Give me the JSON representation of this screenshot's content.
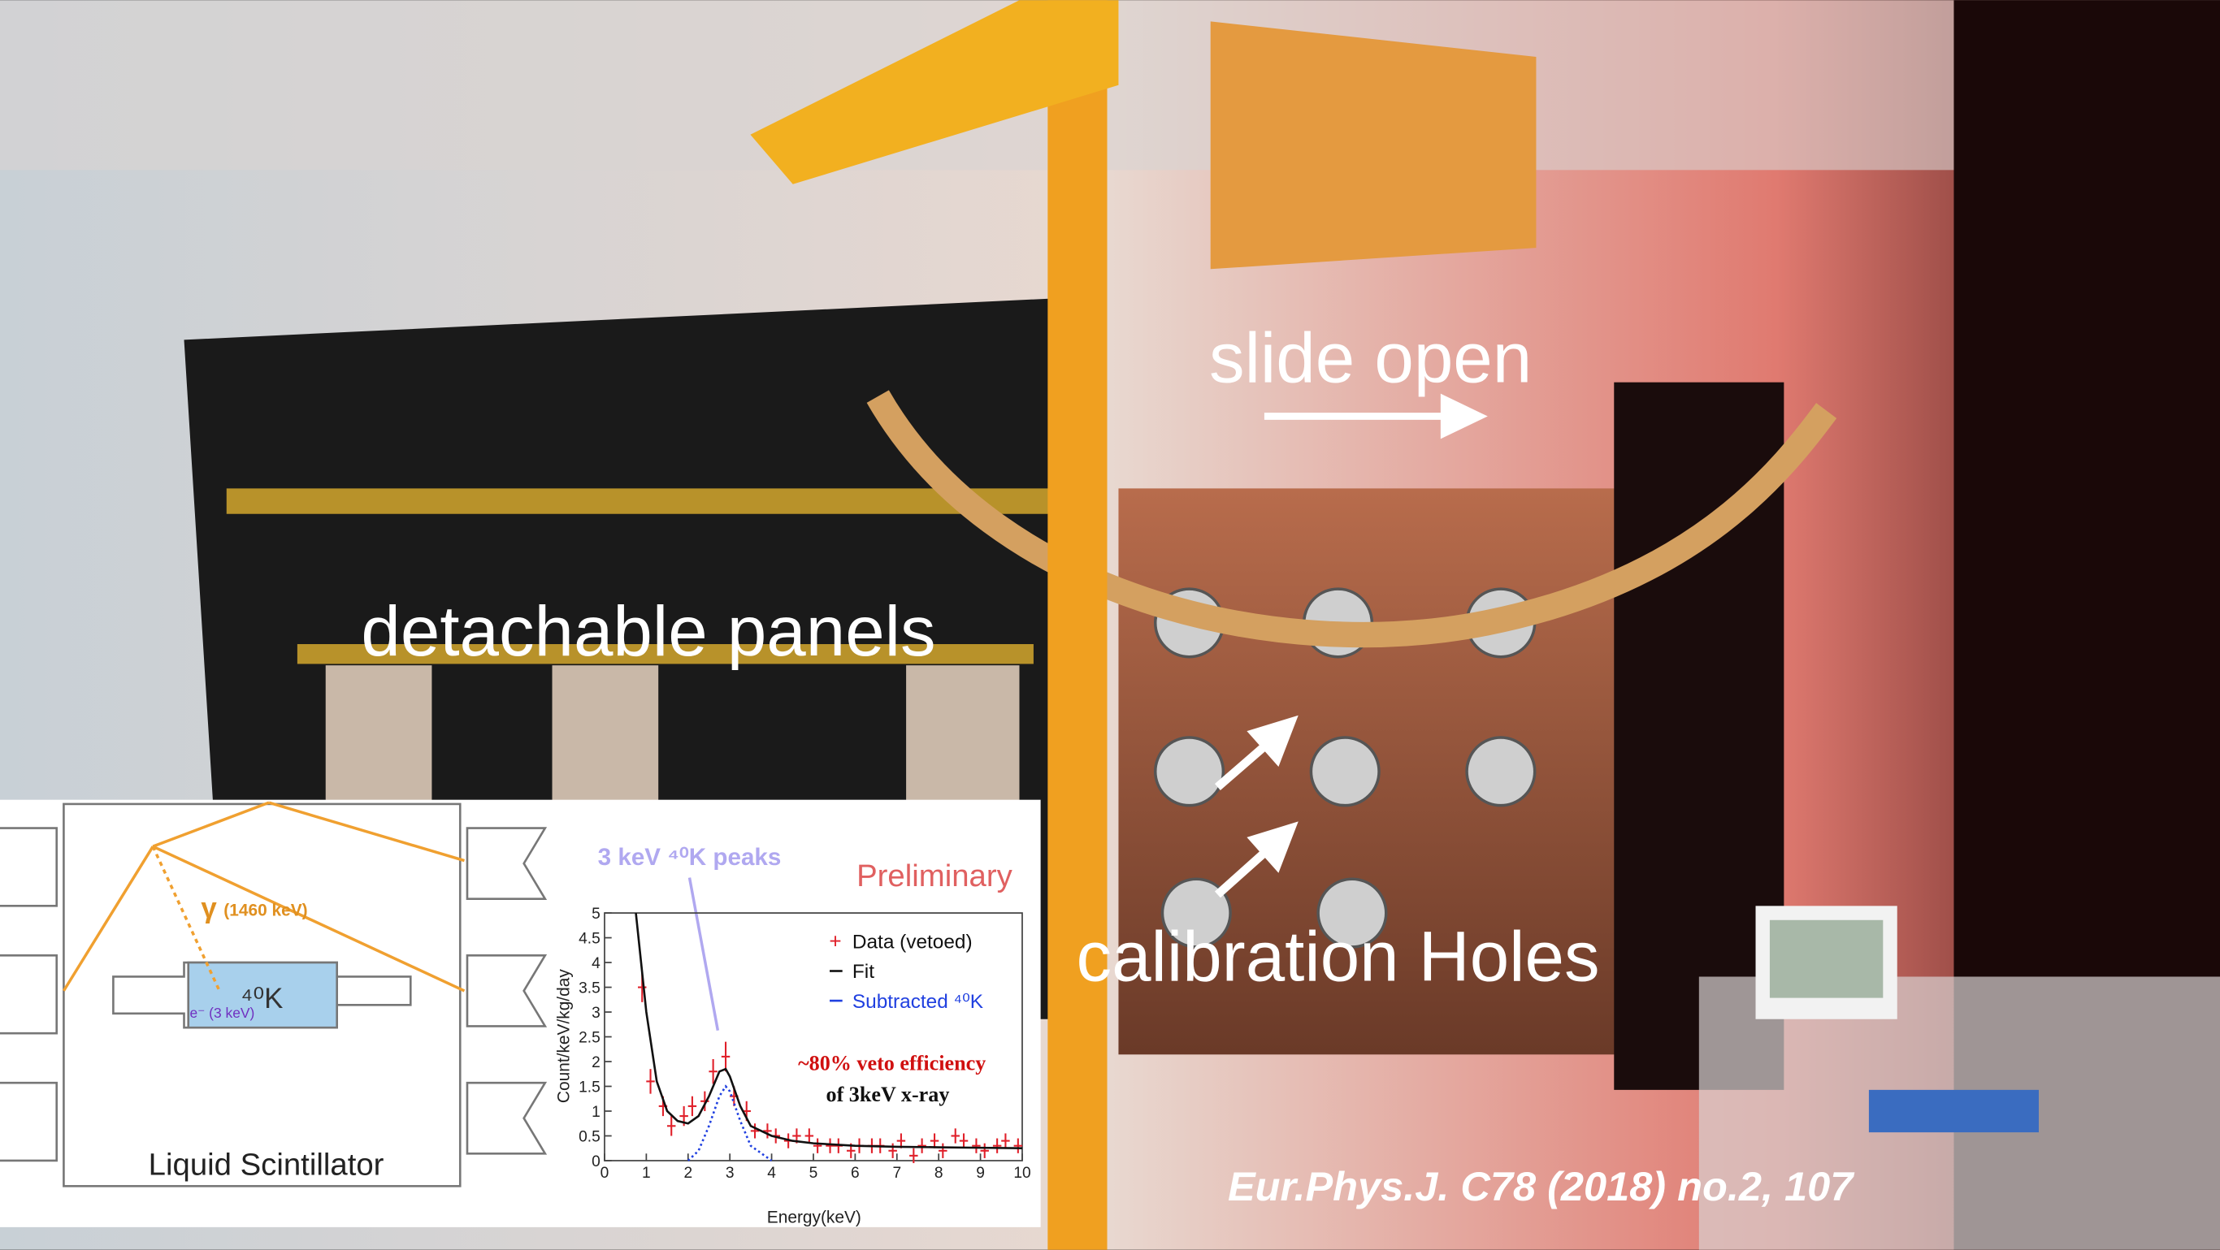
{
  "annotations": {
    "slide_open": "slide open",
    "detachable_panels": "detachable panels",
    "calibration_holes": "calibration Holes",
    "citation": "Eur.Phys.J. C78 (2018) no.2, 107"
  },
  "diagram": {
    "gamma": "γ",
    "gamma_energy": "(1460 keV)",
    "source": "⁴⁰K",
    "electron": "e⁻ (3 keV)",
    "label": "Liquid Scintillator"
  },
  "chart_data": {
    "type": "line",
    "title": "3 keV ⁴⁰K peaks",
    "subtitle": "Preliminary",
    "x_label": "Energy(keV)",
    "y_label": "Count/keV/kg/day",
    "annotations": [
      "~80% veto efficiency",
      "of 3keV x-ray"
    ],
    "xlim": [
      0,
      10
    ],
    "xticks": [
      0,
      1,
      2,
      3,
      4,
      5,
      6,
      7,
      8,
      9,
      10
    ],
    "ylim": [
      0,
      5
    ],
    "yticks": [
      0,
      0.5,
      1,
      1.5,
      2,
      2.5,
      3,
      3.5,
      4,
      4.5,
      5
    ],
    "series": [
      {
        "name": "Data (vetoed)",
        "color": "#e0202a",
        "kind": "errorbar",
        "x": [
          0.9,
          1.1,
          1.4,
          1.6,
          1.9,
          2.1,
          2.4,
          2.6,
          2.9,
          3.1,
          3.4,
          3.6,
          3.9,
          4.1,
          4.4,
          4.6,
          4.9,
          5.1,
          5.4,
          5.6,
          5.9,
          6.1,
          6.4,
          6.6,
          6.9,
          7.1,
          7.4,
          7.6,
          7.9,
          8.1,
          8.4,
          8.6,
          8.9,
          9.1,
          9.4,
          9.6,
          9.9
        ],
        "values": [
          3.5,
          1.6,
          1.1,
          0.7,
          0.9,
          1.1,
          1.2,
          1.8,
          2.1,
          1.3,
          1.0,
          0.6,
          0.6,
          0.5,
          0.4,
          0.5,
          0.5,
          0.3,
          0.3,
          0.3,
          0.2,
          0.3,
          0.3,
          0.3,
          0.2,
          0.4,
          0.1,
          0.3,
          0.4,
          0.2,
          0.5,
          0.4,
          0.3,
          0.2,
          0.3,
          0.4,
          0.3
        ],
        "errors": [
          0.3,
          0.25,
          0.2,
          0.2,
          0.2,
          0.2,
          0.2,
          0.25,
          0.3,
          0.2,
          0.2,
          0.15,
          0.15,
          0.15,
          0.15,
          0.15,
          0.15,
          0.15,
          0.15,
          0.15,
          0.15,
          0.15,
          0.15,
          0.15,
          0.15,
          0.15,
          0.15,
          0.15,
          0.15,
          0.15,
          0.15,
          0.15,
          0.15,
          0.15,
          0.15,
          0.15,
          0.15
        ]
      },
      {
        "name": "Fit",
        "color": "#111111",
        "kind": "line",
        "x": [
          0.75,
          1,
          1.25,
          1.5,
          1.75,
          2,
          2.25,
          2.5,
          2.75,
          2.9,
          3,
          3.25,
          3.5,
          4,
          4.5,
          5,
          6,
          7,
          8,
          9,
          10
        ],
        "values": [
          5,
          3,
          1.6,
          1.0,
          0.8,
          0.75,
          0.9,
          1.3,
          1.8,
          1.85,
          1.7,
          1.1,
          0.7,
          0.5,
          0.4,
          0.35,
          0.3,
          0.28,
          0.27,
          0.26,
          0.25
        ]
      },
      {
        "name": "Subtracted ⁴⁰K",
        "color": "#2040e0",
        "kind": "dotted",
        "x": [
          2,
          2.25,
          2.5,
          2.75,
          2.9,
          3,
          3.25,
          3.5,
          4
        ],
        "values": [
          0,
          0.2,
          0.7,
          1.3,
          1.5,
          1.4,
          0.8,
          0.3,
          0
        ]
      }
    ]
  }
}
